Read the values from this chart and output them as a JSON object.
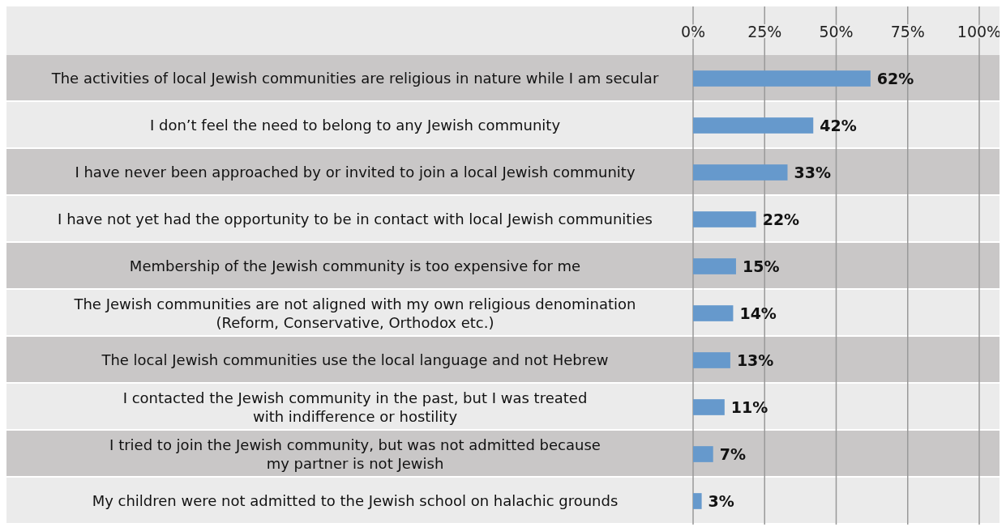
{
  "chart_data": {
    "type": "bar",
    "orientation": "horizontal",
    "categories": [
      "The activities of local Jewish communities are religious in nature while I am secular",
      "I don’t feel the need to belong to any Jewish community",
      "I have never been approached by or invited to join a local Jewish community",
      "I have not yet had the opportunity to be in contact with local Jewish communities",
      "Membership of the Jewish community is too expensive for me",
      "The Jewish communities are not aligned with my own religious denomination\n(Reform, Conservative, Orthodox etc.)",
      "The local Jewish communities use the local language and not Hebrew",
      "I contacted the Jewish community in the past, but I was treated\nwith indifference or hostility",
      "I tried to join the Jewish community, but was not admitted because\nmy partner is not Jewish",
      "My children were not admitted to the Jewish school on halachic grounds"
    ],
    "values": [
      62,
      42,
      33,
      22,
      15,
      14,
      13,
      11,
      7,
      3
    ],
    "color": "#6699cc",
    "value_labels": [
      "62%",
      "42%",
      "33%",
      "22%",
      "15%",
      "14%",
      "13%",
      "11%",
      "7%",
      "3%"
    ],
    "xlim": [
      0,
      100
    ],
    "xticks": [
      {
        "value": 0,
        "label": "0%"
      },
      {
        "value": 25,
        "label": "25%"
      },
      {
        "value": 50,
        "label": "50%"
      },
      {
        "value": 75,
        "label": "75%"
      },
      {
        "value": 100,
        "label": "100%"
      }
    ],
    "grid": "x"
  }
}
